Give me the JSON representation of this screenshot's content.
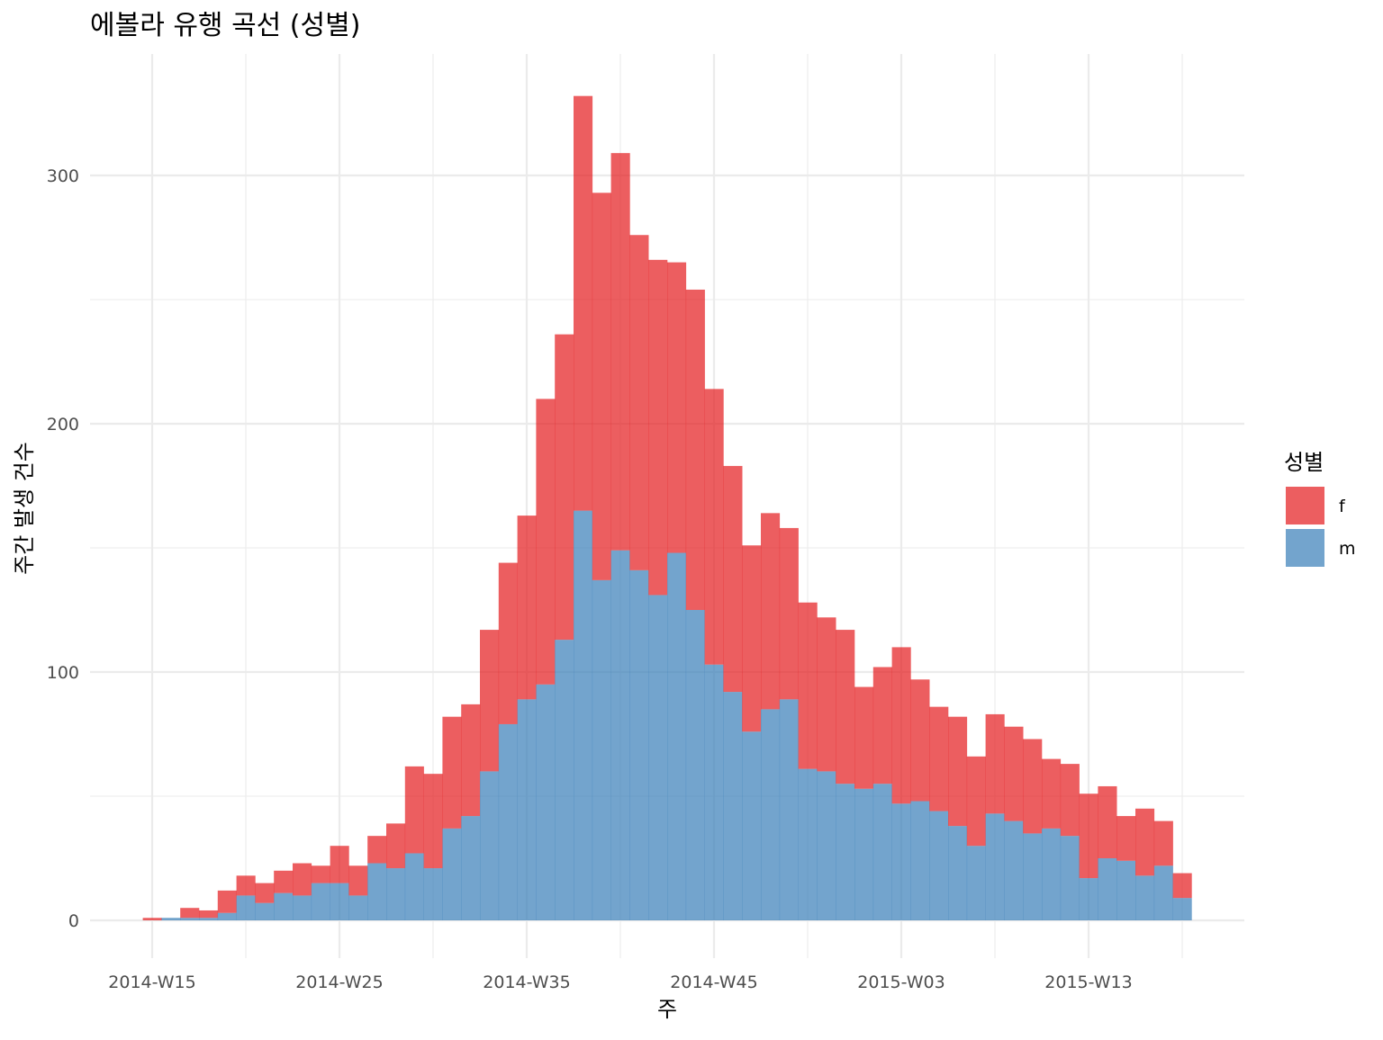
{
  "chart_data": {
    "type": "bar",
    "stacked": true,
    "title": "에볼라 유행 곡선 (성별)",
    "xlabel": "주",
    "ylabel": "주간 발생 건수",
    "ylim": [
      0,
      340
    ],
    "yticks": [
      0,
      100,
      200,
      300
    ],
    "xtick_labels": [
      "2014-W15",
      "2014-W25",
      "2014-W35",
      "2014-W45",
      "2015-W03",
      "2015-W13"
    ],
    "grid": true,
    "legend": {
      "title": "성별",
      "position": "right"
    },
    "categories": [
      "2014-W15",
      "2014-W16",
      "2014-W17",
      "2014-W18",
      "2014-W19",
      "2014-W20",
      "2014-W21",
      "2014-W22",
      "2014-W23",
      "2014-W24",
      "2014-W25",
      "2014-W26",
      "2014-W27",
      "2014-W28",
      "2014-W29",
      "2014-W30",
      "2014-W31",
      "2014-W32",
      "2014-W33",
      "2014-W34",
      "2014-W35",
      "2014-W36",
      "2014-W37",
      "2014-W38",
      "2014-W39",
      "2014-W40",
      "2014-W41",
      "2014-W42",
      "2014-W43",
      "2014-W44",
      "2014-W45",
      "2014-W46",
      "2014-W47",
      "2014-W48",
      "2014-W49",
      "2014-W50",
      "2014-W51",
      "2014-W52",
      "2015-W01",
      "2015-W02",
      "2015-W03",
      "2015-W04",
      "2015-W05",
      "2015-W06",
      "2015-W07",
      "2015-W08",
      "2015-W09",
      "2015-W10",
      "2015-W11",
      "2015-W12",
      "2015-W13",
      "2015-W14",
      "2015-W15",
      "2015-W16",
      "2015-W17",
      "2015-W18"
    ],
    "series": [
      {
        "name": "f",
        "color": "#E41A1C",
        "values": [
          1,
          0,
          4,
          3,
          9,
          8,
          8,
          9,
          13,
          7,
          15,
          12,
          11,
          18,
          35,
          38,
          45,
          45,
          57,
          65,
          74,
          115,
          123,
          167,
          156,
          160,
          135,
          135,
          117,
          129,
          111,
          91,
          75,
          79,
          69,
          67,
          62,
          62,
          41,
          47,
          63,
          49,
          42,
          44,
          36,
          40,
          38,
          38,
          28,
          29,
          34,
          29,
          18,
          27,
          18,
          10
        ]
      },
      {
        "name": "m",
        "color": "#377EB8",
        "values": [
          0,
          1,
          1,
          1,
          3,
          10,
          7,
          11,
          10,
          15,
          15,
          10,
          23,
          21,
          27,
          21,
          37,
          42,
          60,
          79,
          89,
          95,
          113,
          165,
          137,
          149,
          141,
          131,
          148,
          125,
          103,
          92,
          76,
          85,
          89,
          61,
          60,
          55,
          53,
          55,
          47,
          48,
          44,
          38,
          30,
          43,
          40,
          35,
          37,
          34,
          17,
          25,
          24,
          18,
          22,
          9
        ]
      }
    ]
  }
}
